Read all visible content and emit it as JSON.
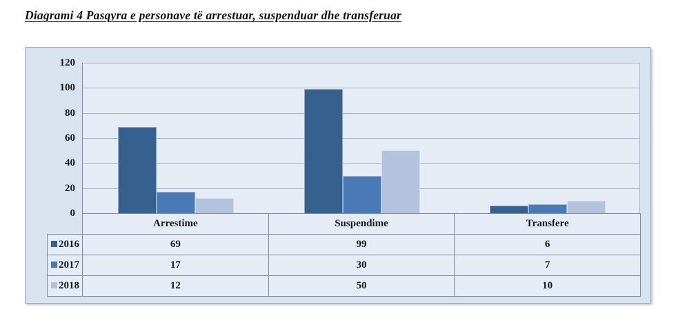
{
  "title": "Diagrami 4 Pasqyra e personave të arrestuar, suspenduar dhe transferuar",
  "chart_data": {
    "type": "bar",
    "title": "",
    "xlabel": "",
    "ylabel": "",
    "categories": [
      "Arrestime",
      "Suspendime",
      "Transfere"
    ],
    "series": [
      {
        "name": "2016",
        "color": "#36618f",
        "values": [
          69,
          99,
          6
        ]
      },
      {
        "name": "2017",
        "color": "#4a7ab5",
        "values": [
          17,
          30,
          7
        ]
      },
      {
        "name": "2018",
        "color": "#b3c2dd",
        "values": [
          12,
          50,
          10
        ]
      }
    ],
    "ylim": [
      0,
      120
    ],
    "y_ticks": [
      0,
      20,
      40,
      60,
      80,
      100,
      120
    ],
    "grid": true,
    "legend_position": "data-table-left",
    "data_table": true
  },
  "colors": {
    "page_bg": "#ffffff",
    "chart_bg": "#d9e3ef",
    "plot_bg": "#e6ecf5",
    "gridline": "#a9b2c0",
    "axis_line": "#7e8da1",
    "table_border": "#7e8da1",
    "chart_border": "#9ba8ba",
    "text": "#1a1a1a"
  }
}
